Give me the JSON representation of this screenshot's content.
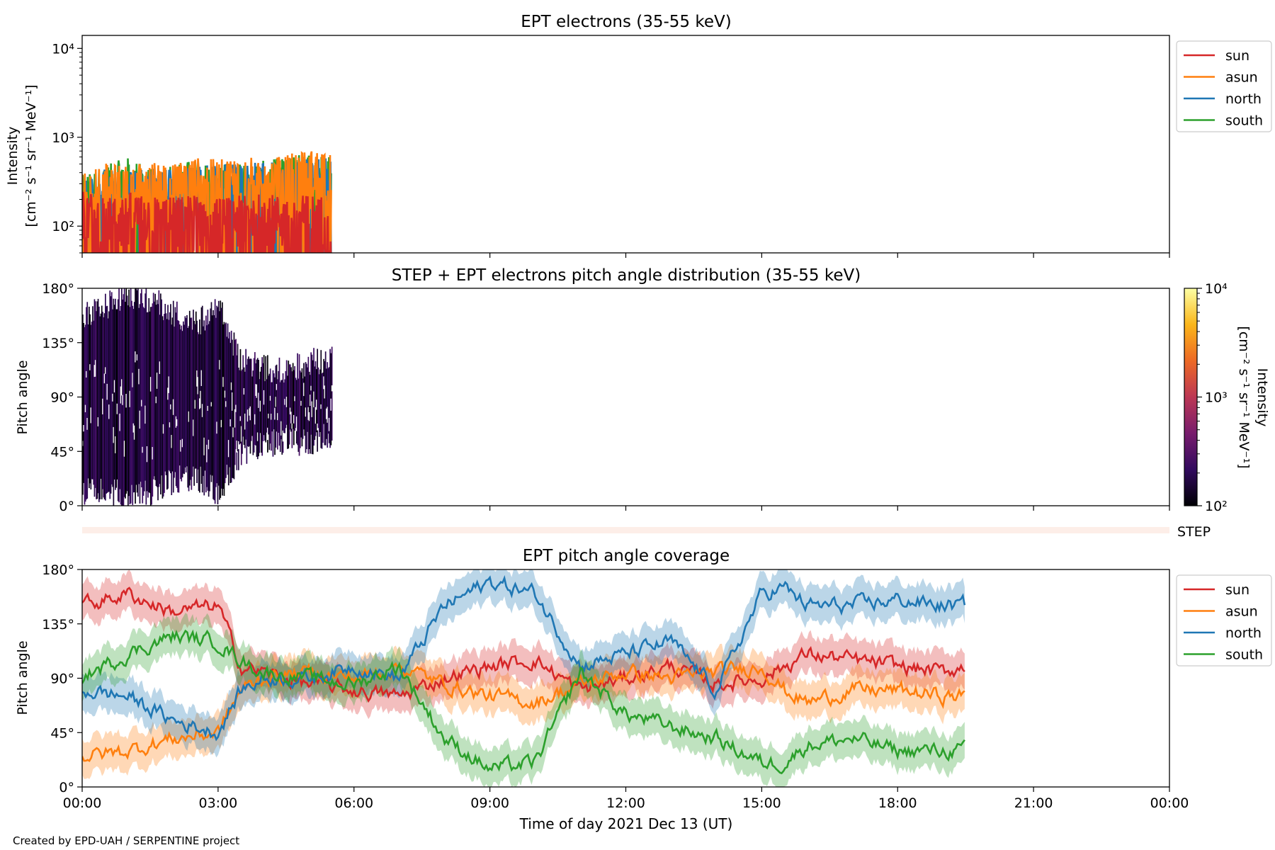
{
  "figure": {
    "xlabel": "Time of day 2021 Dec 13 (UT)",
    "credit": "Created by EPD-UAH / SERPENTINE project",
    "xticks": [
      "00:00",
      "03:00",
      "06:00",
      "09:00",
      "12:00",
      "15:00",
      "18:00",
      "21:00",
      "00:00"
    ]
  },
  "chart_data": [
    {
      "type": "line",
      "title": "EPT electrons (35-55 keV)",
      "ylabel_line1": "Intensity",
      "ylabel_line2": "[cm⁻² s⁻¹ sr⁻¹ MeV⁻¹]",
      "yscale": "log",
      "ylim": [
        50,
        14000
      ],
      "yticks": [
        {
          "label": "10²",
          "value": 100
        },
        {
          "label": "10³",
          "value": 1000
        },
        {
          "label": "10⁴",
          "value": 10000
        }
      ],
      "xlim_hours": [
        0,
        24
      ],
      "legend": "outside-right-top",
      "note": "data available 00:00-05:30 only; all four series fluctuate rapidly",
      "series": [
        {
          "name": "sun",
          "color": "#d62728",
          "x_hours": [
            0,
            0.5,
            1,
            1.5,
            2,
            2.5,
            3,
            3.5,
            4,
            4.5,
            5,
            5.5
          ],
          "values": [
            150,
            120,
            140,
            130,
            125,
            135,
            120,
            130,
            140,
            125,
            135,
            130
          ]
        },
        {
          "name": "asun",
          "color": "#ff7f0e",
          "x_hours": [
            0,
            0.5,
            1,
            1.5,
            2,
            2.5,
            3,
            3.5,
            4,
            4.5,
            5,
            5.5
          ],
          "values": [
            250,
            300,
            280,
            320,
            300,
            350,
            330,
            360,
            340,
            380,
            420,
            450
          ]
        },
        {
          "name": "north",
          "color": "#1f77b4",
          "x_hours": [
            0,
            0.5,
            1,
            1.5,
            2,
            2.5,
            3,
            3.5,
            4,
            4.5,
            5,
            5.5
          ],
          "values": [
            200,
            260,
            240,
            280,
            270,
            300,
            290,
            320,
            300,
            340,
            360,
            350
          ]
        },
        {
          "name": "south",
          "color": "#2ca02c",
          "x_hours": [
            0,
            0.5,
            1,
            1.5,
            2,
            2.5,
            3,
            3.5,
            4,
            4.5,
            5,
            5.5
          ],
          "values": [
            220,
            280,
            350,
            260,
            300,
            320,
            280,
            340,
            320,
            350,
            400,
            380
          ]
        }
      ]
    },
    {
      "type": "heatmap",
      "title": "STEP + EPT electrons pitch angle distribution (35-55 keV)",
      "ylabel": "Pitch angle",
      "ylim": [
        0,
        180
      ],
      "yticks": [
        "0°",
        "45°",
        "90°",
        "135°",
        "180°"
      ],
      "colorbar": {
        "scale": "log",
        "range": [
          100,
          10000
        ],
        "ticks": [
          {
            "label": "10²",
            "value": 100
          },
          {
            "label": "10³",
            "value": 1000
          },
          {
            "label": "10⁴",
            "value": 10000
          }
        ],
        "label_line1": "Intensity",
        "label_line2": "[cm⁻² s⁻¹ sr⁻¹ MeV⁻¹]",
        "colormap": [
          "#000004",
          "#320a5e",
          "#781c6d",
          "#bc3754",
          "#ed6925",
          "#fbb61a",
          "#fcffa4"
        ]
      },
      "coverage": {
        "x_hours": [
          0,
          0.5,
          1.0,
          1.5,
          2.0,
          2.5,
          3.0,
          3.5,
          4.0,
          4.5,
          5.0,
          5.5
        ],
        "lower_deg": [
          10,
          15,
          5,
          12,
          20,
          25,
          10,
          45,
          50,
          55,
          50,
          60
        ],
        "upper_deg": [
          155,
          165,
          175,
          170,
          160,
          150,
          165,
          120,
          115,
          110,
          120,
          120
        ],
        "typical_intensity": 150
      }
    },
    {
      "type": "line",
      "title": "",
      "label": "STEP",
      "note": "thin strip with no data",
      "color": "#fdeee8"
    },
    {
      "type": "line",
      "title": "EPT pitch angle coverage",
      "ylabel": "Pitch angle",
      "ylim": [
        0,
        180
      ],
      "yticks": [
        "0°",
        "45°",
        "90°",
        "135°",
        "180°"
      ],
      "xlim_hours": [
        0,
        24
      ],
      "legend": "outside-right-top",
      "band_halfwidth_deg": 15,
      "series": [
        {
          "name": "sun",
          "color": "#d62728",
          "x_hours": [
            0,
            1,
            2,
            3,
            3.5,
            4,
            5,
            6,
            7,
            8,
            9,
            10,
            11,
            12,
            13,
            14,
            15,
            15.5,
            16,
            17,
            18,
            19,
            19.5
          ],
          "values": [
            150,
            160,
            145,
            150,
            100,
            95,
            85,
            80,
            75,
            90,
            100,
            105,
            80,
            90,
            100,
            85,
            90,
            100,
            110,
            105,
            100,
            95,
            100
          ]
        },
        {
          "name": "asun",
          "color": "#ff7f0e",
          "x_hours": [
            0,
            1,
            2,
            3,
            3.5,
            4,
            5,
            6,
            7,
            8,
            9,
            10,
            11,
            12,
            13,
            14,
            15,
            15.5,
            16,
            17,
            18,
            19,
            19.5
          ],
          "values": [
            25,
            30,
            40,
            45,
            80,
            90,
            95,
            90,
            100,
            85,
            75,
            70,
            85,
            95,
            90,
            95,
            100,
            80,
            70,
            80,
            80,
            75,
            75
          ]
        },
        {
          "name": "north",
          "color": "#1f77b4",
          "x_hours": [
            0,
            1,
            2,
            3,
            3.5,
            4,
            5,
            6,
            7,
            8,
            9,
            10,
            11,
            12,
            13,
            14,
            15,
            15.5,
            16,
            17,
            18,
            19,
            19.5
          ],
          "values": [
            80,
            75,
            55,
            45,
            80,
            90,
            90,
            100,
            90,
            150,
            170,
            160,
            100,
            110,
            120,
            80,
            160,
            165,
            150,
            150,
            155,
            150,
            150
          ]
        },
        {
          "name": "south",
          "color": "#2ca02c",
          "x_hours": [
            0,
            1,
            2,
            3,
            3.5,
            4,
            5,
            6,
            7,
            8,
            9,
            10,
            11,
            12,
            13,
            14,
            15,
            15.5,
            16,
            17,
            18,
            19,
            19.5
          ],
          "values": [
            90,
            110,
            125,
            120,
            105,
            95,
            90,
            85,
            100,
            40,
            15,
            20,
            95,
            60,
            50,
            40,
            20,
            20,
            35,
            40,
            30,
            30,
            30
          ]
        }
      ]
    }
  ]
}
